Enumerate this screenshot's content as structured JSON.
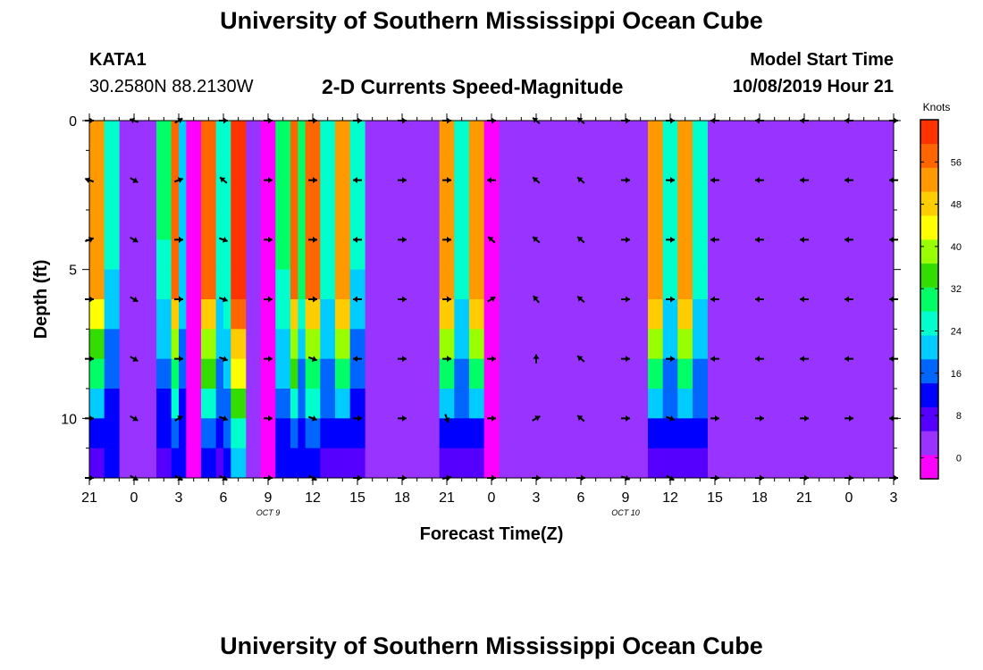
{
  "page": {
    "title": "University of Southern Mississippi Ocean Cube",
    "footer_title": "University of Southern Mississippi Ocean Cube",
    "station": {
      "id": "KATA1",
      "coords": "30.2580N 88.2130W"
    },
    "subtitle": "2-D Currents Speed-Magnitude",
    "model_start": {
      "label": "Model Start Time",
      "value": "10/08/2019 Hour 21"
    }
  },
  "chart_data": {
    "type": "heatmap",
    "title": "2-D Currents Speed-Magnitude",
    "xlabel": "Forecast Time(Z)",
    "ylabel": "Depth (ft)",
    "colorbar_label": "Knots",
    "x_ticks": [
      "21",
      "0",
      "3",
      "6",
      "9",
      "12",
      "15",
      "18",
      "21",
      "0",
      "3",
      "6",
      "9",
      "12",
      "15",
      "18",
      "21",
      "0",
      "3"
    ],
    "date_labels": [
      {
        "text": "OCT 9",
        "x": 12
      },
      {
        "text": "OCT 10",
        "x": 36
      }
    ],
    "x_range": [
      0,
      54
    ],
    "y_ticks": [
      0,
      5,
      10
    ],
    "y_range": [
      0,
      12
    ],
    "depths": [
      0.5,
      1.5,
      2.5,
      3.5,
      4.5,
      5.5,
      6.5,
      7.5,
      8.5,
      9.5,
      10.5,
      11.5
    ],
    "colorbar_ticks": [
      0,
      8,
      16,
      24,
      32,
      40,
      48,
      56
    ],
    "colorbar_range": [
      -4,
      64
    ],
    "colorbar_colors": [
      "#ff00ff",
      "#9933ff",
      "#5500ff",
      "#0000ff",
      "#0066ff",
      "#00ccff",
      "#00ffcc",
      "#00ff66",
      "#33dd00",
      "#99ff00",
      "#ffff00",
      "#ffcc00",
      "#ff9900",
      "#ff6600",
      "#ff3300"
    ],
    "background_speed": 4,
    "hours": [
      0.5,
      1.5,
      5,
      6,
      6.5,
      7,
      8,
      9,
      9.5,
      10,
      12,
      13,
      14,
      14.5,
      15,
      16,
      17,
      18,
      24,
      25,
      26,
      27,
      38,
      39,
      40,
      41
    ],
    "profiles": [
      [
        54,
        54,
        54,
        54,
        54,
        54,
        44,
        36,
        30,
        22,
        14,
        8
      ],
      [
        26,
        26,
        26,
        26,
        24,
        22,
        20,
        18,
        16,
        14,
        12,
        10
      ],
      [
        28,
        28,
        28,
        28,
        26,
        24,
        22,
        20,
        18,
        14,
        10,
        6
      ],
      [
        56,
        56,
        56,
        56,
        56,
        56,
        48,
        40,
        32,
        24,
        16,
        10
      ],
      [
        22,
        22,
        22,
        22,
        22,
        20,
        20,
        18,
        16,
        14,
        12,
        10
      ],
      [
        0,
        0,
        0,
        0,
        0,
        0,
        0,
        0,
        0,
        0,
        0,
        0
      ],
      [
        58,
        58,
        58,
        58,
        58,
        56,
        48,
        40,
        34,
        24,
        16,
        10
      ],
      [
        26,
        26,
        26,
        26,
        26,
        24,
        22,
        20,
        18,
        16,
        12,
        8
      ],
      [
        26,
        26,
        26,
        26,
        26,
        24,
        24,
        22,
        20,
        18,
        16,
        14
      ],
      [
        62,
        62,
        62,
        62,
        62,
        62,
        58,
        50,
        42,
        36,
        24,
        20
      ],
      [
        -2,
        -2,
        -2,
        -2,
        -2,
        -2,
        -2,
        -2,
        -2,
        -2,
        -2,
        -2
      ],
      [
        28,
        28,
        28,
        28,
        28,
        26,
        24,
        22,
        20,
        18,
        14,
        10
      ],
      [
        56,
        56,
        56,
        56,
        56,
        56,
        48,
        40,
        34,
        26,
        18,
        10
      ],
      [
        30,
        30,
        30,
        30,
        30,
        28,
        24,
        20,
        18,
        16,
        14,
        12
      ],
      [
        56,
        56,
        56,
        56,
        56,
        56,
        48,
        40,
        32,
        24,
        16,
        10
      ],
      [
        26,
        26,
        26,
        26,
        26,
        24,
        22,
        20,
        18,
        16,
        12,
        8
      ],
      [
        54,
        54,
        54,
        54,
        54,
        54,
        46,
        38,
        30,
        22,
        14,
        8
      ],
      [
        26,
        26,
        26,
        26,
        24,
        22,
        20,
        18,
        16,
        12,
        10,
        8
      ],
      [
        54,
        54,
        54,
        54,
        54,
        54,
        46,
        38,
        30,
        22,
        14,
        8
      ],
      [
        26,
        26,
        26,
        26,
        26,
        24,
        22,
        20,
        18,
        16,
        12,
        8
      ],
      [
        54,
        54,
        54,
        54,
        54,
        54,
        46,
        38,
        30,
        22,
        14,
        8
      ],
      [
        -2,
        -2,
        -2,
        -2,
        -2,
        -2,
        -2,
        -2,
        -2,
        -2,
        -2,
        -2
      ],
      [
        54,
        54,
        54,
        54,
        54,
        54,
        46,
        38,
        30,
        22,
        14,
        8
      ],
      [
        26,
        26,
        26,
        26,
        26,
        24,
        22,
        20,
        18,
        16,
        12,
        8
      ],
      [
        54,
        54,
        54,
        54,
        54,
        54,
        46,
        38,
        30,
        22,
        14,
        8
      ],
      [
        26,
        26,
        26,
        26,
        26,
        24,
        22,
        20,
        18,
        16,
        12,
        8
      ]
    ],
    "vector_hours": [
      0,
      3,
      6,
      9,
      12,
      15,
      18,
      21,
      24,
      27,
      30,
      33,
      36,
      39,
      42,
      45,
      48,
      51,
      54
    ],
    "vector_depths": [
      0,
      2,
      4,
      6,
      8,
      10,
      12
    ],
    "vector_directions_deg": [
      [
        0,
        200,
        340,
        0,
        0,
        0,
        0
      ],
      [
        200,
        30,
        30,
        30,
        30,
        30,
        30
      ],
      [
        330,
        340,
        0,
        0,
        0,
        330,
        30
      ],
      [
        0,
        220,
        20,
        20,
        20,
        20,
        30
      ],
      [
        0,
        0,
        0,
        0,
        0,
        0,
        0
      ],
      [
        0,
        0,
        0,
        0,
        20,
        20,
        30
      ],
      [
        0,
        180,
        180,
        180,
        180,
        0,
        0
      ],
      [
        0,
        0,
        0,
        0,
        0,
        0,
        0
      ],
      [
        0,
        0,
        0,
        0,
        0,
        70,
        350
      ],
      [
        0,
        180,
        220,
        330,
        0,
        0,
        0
      ],
      [
        220,
        220,
        220,
        230,
        270,
        330,
        0
      ],
      [
        220,
        220,
        220,
        220,
        220,
        220,
        0
      ],
      [
        0,
        0,
        0,
        0,
        0,
        0,
        20
      ],
      [
        0,
        0,
        0,
        0,
        0,
        20,
        30
      ],
      [
        180,
        180,
        180,
        180,
        180,
        0,
        0
      ],
      [
        180,
        180,
        180,
        180,
        180,
        0,
        0
      ],
      [
        180,
        180,
        180,
        180,
        180,
        0,
        0
      ],
      [
        180,
        180,
        180,
        180,
        180,
        0,
        0
      ],
      [
        0,
        180,
        180,
        180,
        180,
        180,
        0
      ]
    ]
  }
}
